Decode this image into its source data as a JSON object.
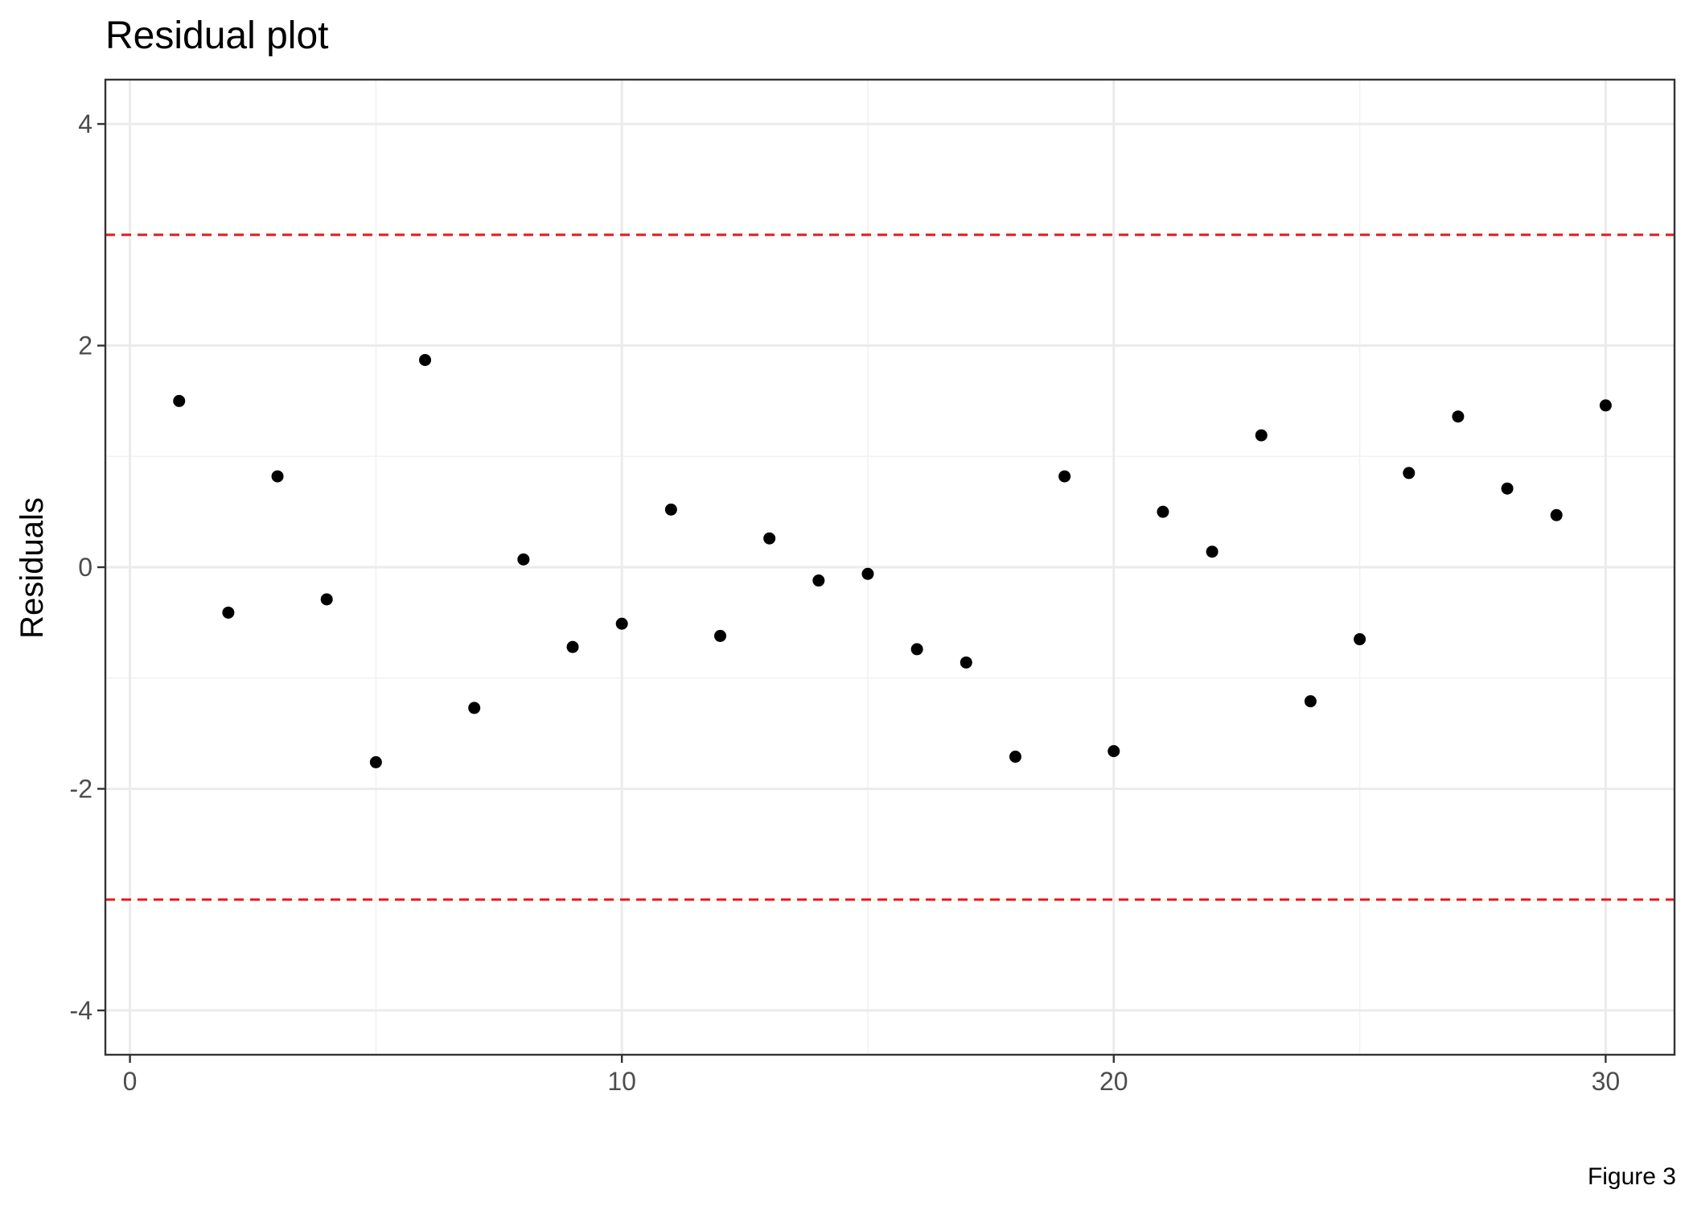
{
  "chart_data": {
    "type": "scatter",
    "title": "Residual plot",
    "xlabel": "",
    "ylabel": "Residuals",
    "caption": "Figure 3",
    "xlim": [
      -0.5,
      31.4
    ],
    "ylim": [
      -4.4,
      4.4
    ],
    "x_ticks": [
      0,
      10,
      20,
      30
    ],
    "x_minor_ticks": [
      5,
      15,
      25
    ],
    "y_ticks": [
      -4,
      -2,
      0,
      2,
      4
    ],
    "y_minor_ticks": [
      -3,
      -1,
      1,
      3
    ],
    "grid": true,
    "reference_lines": [
      {
        "y": 3,
        "color": "#e31a1c",
        "style": "dashed"
      },
      {
        "y": -3,
        "color": "#e31a1c",
        "style": "dashed"
      }
    ],
    "point_color": "#000000",
    "x": [
      1,
      2,
      3,
      4,
      5,
      6,
      7,
      8,
      9,
      10,
      11,
      12,
      13,
      14,
      15,
      16,
      17,
      18,
      19,
      20,
      21,
      22,
      23,
      24,
      25,
      26,
      27,
      28,
      29,
      30
    ],
    "y": [
      1.5,
      -0.41,
      0.82,
      -0.29,
      -1.76,
      1.87,
      -1.27,
      0.07,
      -0.72,
      -0.51,
      0.52,
      -0.62,
      0.26,
      -0.12,
      -0.06,
      -0.74,
      -0.86,
      -1.71,
      0.82,
      -1.66,
      0.5,
      0.14,
      1.19,
      -1.21,
      -0.65,
      0.85,
      1.36,
      0.71,
      0.47,
      1.46
    ]
  }
}
